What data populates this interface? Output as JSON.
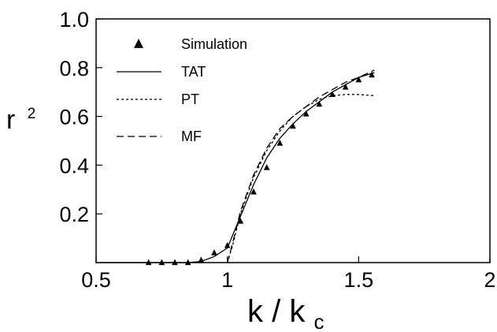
{
  "chart_data": {
    "type": "line",
    "title": "",
    "xlabel": "k / k",
    "xlabel_subscript": "c",
    "ylabel": "r",
    "ylabel_superscript": "2",
    "xlim": [
      0.5,
      2.0
    ],
    "ylim": [
      0.0,
      1.0
    ],
    "x_ticks": [
      0.5,
      1,
      1.5,
      2
    ],
    "x_tick_labels": [
      "0.5",
      "1",
      "1.5",
      "2"
    ],
    "y_ticks": [
      0.2,
      0.4,
      0.6,
      0.8,
      1.0
    ],
    "y_tick_labels": [
      "0.2",
      "0.4",
      "0.6",
      "0.8",
      "1.0"
    ],
    "grid": false,
    "legend_position": "top-left",
    "series": [
      {
        "name": "Simulation",
        "style": "markers",
        "marker": "triangle",
        "x": [
          0.7,
          0.75,
          0.8,
          0.85,
          0.9,
          0.95,
          1.0,
          1.05,
          1.1,
          1.15,
          1.2,
          1.25,
          1.3,
          1.35,
          1.4,
          1.45,
          1.5,
          1.55
        ],
        "y": [
          0.0,
          0.0,
          0.0,
          0.0,
          0.01,
          0.04,
          0.07,
          0.17,
          0.29,
          0.39,
          0.49,
          0.56,
          0.61,
          0.65,
          0.69,
          0.72,
          0.75,
          0.77
        ]
      },
      {
        "name": "TAT",
        "style": "solid",
        "x": [
          0.5,
          0.85,
          0.9,
          0.95,
          1.0,
          1.05,
          1.1,
          1.15,
          1.2,
          1.25,
          1.3,
          1.35,
          1.4,
          1.45,
          1.5,
          1.56
        ],
        "y": [
          0.0,
          0.0,
          0.005,
          0.025,
          0.06,
          0.19,
          0.32,
          0.43,
          0.51,
          0.57,
          0.62,
          0.66,
          0.7,
          0.73,
          0.76,
          0.78
        ]
      },
      {
        "name": "PT",
        "style": "dotted",
        "x": [
          1.0,
          1.02,
          1.05,
          1.1,
          1.15,
          1.2,
          1.25,
          1.3,
          1.35,
          1.4,
          1.45,
          1.5,
          1.56
        ],
        "y": [
          0.0,
          0.07,
          0.2,
          0.35,
          0.46,
          0.54,
          0.6,
          0.64,
          0.67,
          0.685,
          0.69,
          0.69,
          0.685
        ]
      },
      {
        "name": "MF",
        "style": "dashed",
        "x": [
          1.0,
          1.02,
          1.05,
          1.1,
          1.15,
          1.2,
          1.25,
          1.3,
          1.35,
          1.4,
          1.45,
          1.5,
          1.56
        ],
        "y": [
          0.0,
          0.08,
          0.21,
          0.36,
          0.47,
          0.55,
          0.6,
          0.64,
          0.68,
          0.71,
          0.74,
          0.76,
          0.79
        ]
      }
    ]
  },
  "colors": {
    "line": "#000000",
    "background": "#ffffff"
  }
}
